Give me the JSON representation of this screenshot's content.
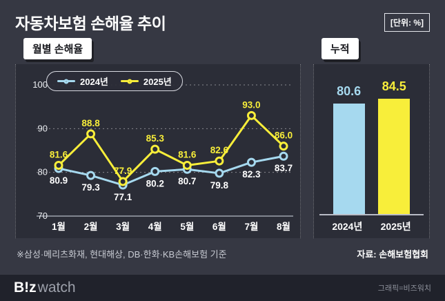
{
  "page": {
    "title": "자동차보험 손해율 추이",
    "unit_label": "[단위: %]",
    "footnote": "※삼성·메리츠화재, 현대해상, DB·한화·KB손해보험 기준",
    "source": "자료: 손해보험협회",
    "credit": "그래픽=비즈워치",
    "logo": {
      "bold": "B!z",
      "light": "watch"
    }
  },
  "colors": {
    "y2024": "#a6d9ef",
    "y2025": "#f8ee3a",
    "background": "#363843",
    "panel": "#2b2d37",
    "footer_bg": "#20222b"
  },
  "chart_data": [
    {
      "type": "line",
      "title": "월별 손해율",
      "categories": [
        "1월",
        "2월",
        "3월",
        "4월",
        "5월",
        "6월",
        "7월",
        "8월"
      ],
      "series": [
        {
          "name": "2024년",
          "color": "#a6d9ef",
          "label_color": "#ffffff",
          "label_position": "below",
          "values": [
            80.9,
            79.3,
            77.1,
            80.2,
            80.7,
            79.8,
            82.3,
            83.7
          ]
        },
        {
          "name": "2025년",
          "color": "#f8ee3a",
          "label_color": "#f8ee3a",
          "label_position": "above",
          "values": [
            81.6,
            88.8,
            77.9,
            85.3,
            81.6,
            82.6,
            93.0,
            86.0
          ]
        }
      ],
      "ylim": [
        70,
        100
      ],
      "yticks": [
        70,
        80,
        90,
        100
      ],
      "legend_position": "top-left",
      "grid": "dotted-horizontal"
    },
    {
      "type": "bar",
      "title": "누적",
      "categories": [
        "2024년",
        "2025년"
      ],
      "values": [
        80.6,
        84.5
      ],
      "colors": [
        "#a6d9ef",
        "#f8ee3a"
      ],
      "ylim": [
        0,
        100
      ],
      "grid": "off"
    }
  ]
}
